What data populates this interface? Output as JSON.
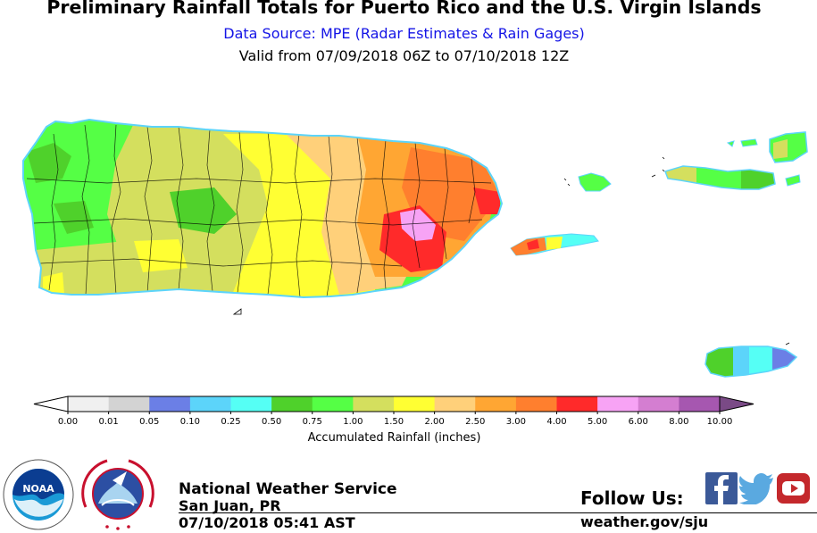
{
  "header": {
    "title": "Preliminary Rainfall Totals for Puerto Rico and the U.S. Virgin Islands",
    "subtitle": "Data Source: MPE (Radar Estimates & Rain Gages)",
    "valid": "Valid from 07/09/2018 06Z to 07/10/2018 12Z"
  },
  "legend": {
    "label": "Accumulated Rainfall (inches)",
    "ticks": [
      "0.00",
      "0.01",
      "0.05",
      "0.10",
      "0.25",
      "0.50",
      "0.75",
      "1.00",
      "1.50",
      "2.00",
      "2.50",
      "3.00",
      "4.00",
      "5.00",
      "6.00",
      "8.00",
      "10.00"
    ],
    "colors": [
      "#f0f0f0",
      "#d3d3d3",
      "#6b7fe6",
      "#5cd4fa",
      "#55fff5",
      "#4fd12b",
      "#55ff45",
      "#d4df5e",
      "#ffff33",
      "#ffd07a",
      "#ffa633",
      "#ff7f2e",
      "#ff2a2a",
      "#f7a3f5",
      "#d47ed1",
      "#a657b0"
    ],
    "under_color": "#ffffff",
    "over_color": "#7a4a86"
  },
  "footer": {
    "agency": "National Weather Service",
    "office": "San Juan, PR",
    "issued": "07/10/2018 05:41 AST",
    "follow": "Follow Us:",
    "website": "weather.gov/sju"
  },
  "logos": {
    "noaa": "NOAA",
    "nws_ring": "NATIONAL WEATHER SERVICE",
    "noaa_ring": "NATIONAL OCEANIC AND ATMOSPHERIC ADMINISTRATION · U.S. DEPARTMENT OF COMMERCE"
  },
  "icons": [
    "noaa-logo",
    "nws-logo",
    "facebook-icon",
    "twitter-icon",
    "youtube-icon"
  ]
}
